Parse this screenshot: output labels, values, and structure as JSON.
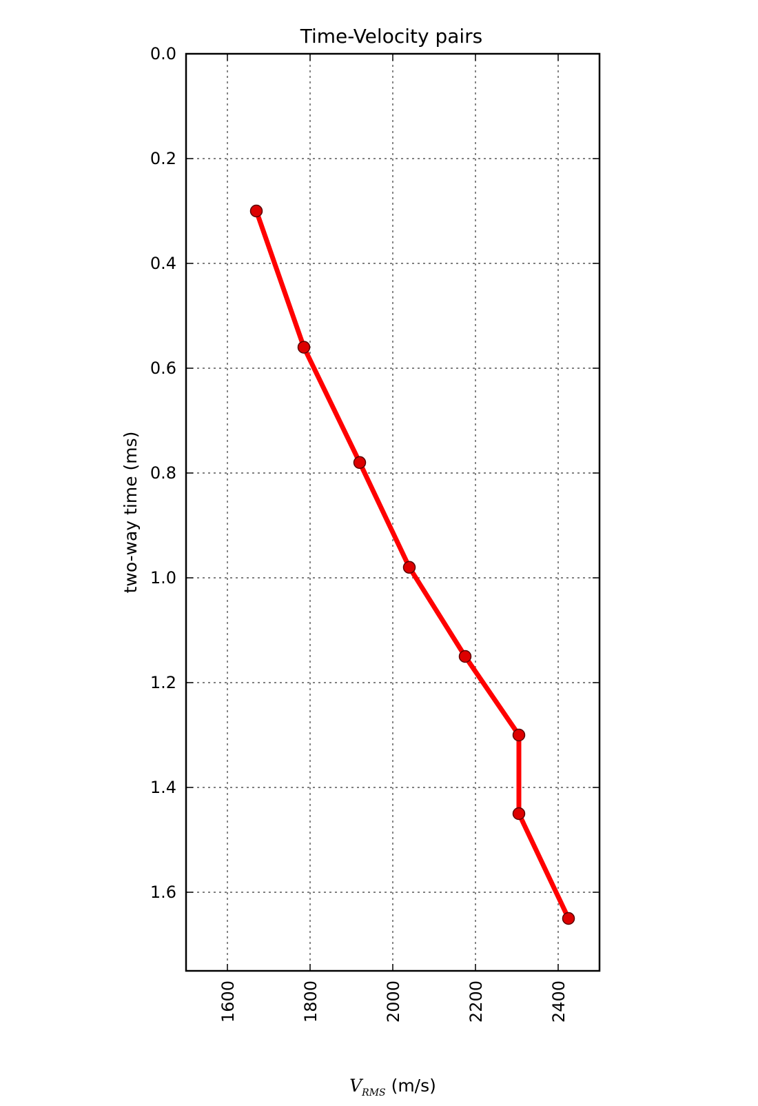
{
  "chart_data": {
    "type": "line",
    "title": "Time-Velocity pairs",
    "xlabel": {
      "symbol": "V",
      "subscript": "RMS",
      "unit": " (m/s)"
    },
    "ylabel": "two-way time (ms)",
    "xlim": [
      1500,
      2500
    ],
    "ylim": [
      1.75,
      0.0
    ],
    "y_inverted": true,
    "grid": true,
    "x_ticks": [
      1600,
      1800,
      2000,
      2200,
      2400
    ],
    "x_tick_labels": [
      "1600",
      "1800",
      "2000",
      "2200",
      "2400"
    ],
    "y_ticks": [
      0.0,
      0.2,
      0.4,
      0.6,
      0.8,
      1.0,
      1.2,
      1.4,
      1.6
    ],
    "y_tick_labels": [
      "0.0",
      "0.2",
      "0.4",
      "0.6",
      "0.8",
      "1.0",
      "1.2",
      "1.4",
      "1.6"
    ],
    "series": [
      {
        "color": "#ff0000",
        "marker_color": "#dd0000",
        "x": [
          1670,
          1785,
          1920,
          2040,
          2175,
          2305,
          2305,
          2425
        ],
        "y": [
          0.3,
          0.56,
          0.78,
          0.98,
          1.15,
          1.3,
          1.45,
          1.65
        ]
      }
    ]
  }
}
